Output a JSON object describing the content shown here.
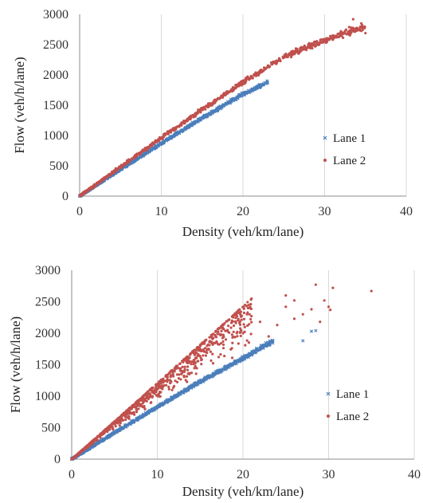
{
  "chart_data": [
    {
      "type": "scatter",
      "title": "",
      "xlabel": "Density (veh/km/lane)",
      "ylabel": "Flow (veh/h/lane)",
      "xlim": [
        0,
        40
      ],
      "ylim": [
        0,
        3000
      ],
      "xticks": [
        "0",
        "10",
        "20",
        "30",
        "40"
      ],
      "yticks": [
        "0",
        "500",
        "1000",
        "1500",
        "2000",
        "2500",
        "3000"
      ],
      "grid": "vertical",
      "legend_position": "right",
      "series": [
        {
          "name": "Lane 1",
          "marker": "x",
          "color": "#4a7ebb",
          "trend": [
            [
              0,
              0
            ],
            [
              5,
              440
            ],
            [
              10,
              870
            ],
            [
              15,
              1290
            ],
            [
              20,
              1680
            ],
            [
              23,
              1880
            ]
          ],
          "spread": 35,
          "count": 700,
          "points": [
            [
              0.3,
              25
            ],
            [
              1,
              85
            ],
            [
              2,
              170
            ],
            [
              3,
              260
            ],
            [
              4,
              350
            ],
            [
              5,
              440
            ],
            [
              6,
              525
            ],
            [
              7,
              610
            ],
            [
              8,
              700
            ],
            [
              9,
              785
            ],
            [
              10,
              870
            ],
            [
              11,
              955
            ],
            [
              12,
              1040
            ],
            [
              13,
              1125
            ],
            [
              14,
              1210
            ],
            [
              15,
              1290
            ],
            [
              16,
              1370
            ],
            [
              17,
              1450
            ],
            [
              18,
              1530
            ],
            [
              19,
              1605
            ],
            [
              20,
              1680
            ],
            [
              21,
              1750
            ],
            [
              22,
              1815
            ],
            [
              23,
              1880
            ]
          ]
        },
        {
          "name": "Lane 2",
          "marker": "dot",
          "color": "#c0504d",
          "trend": [
            [
              0,
              0
            ],
            [
              5,
              480
            ],
            [
              10,
              960
            ],
            [
              15,
              1430
            ],
            [
              20,
              1880
            ],
            [
              25,
              2300
            ],
            [
              30,
              2580
            ],
            [
              35,
              2800
            ]
          ],
          "spread": 70,
          "count": 800,
          "points": [
            [
              0.3,
              28
            ],
            [
              1,
              95
            ],
            [
              2,
              190
            ],
            [
              3,
              290
            ],
            [
              4,
              385
            ],
            [
              5,
              480
            ],
            [
              6,
              575
            ],
            [
              7,
              670
            ],
            [
              8,
              770
            ],
            [
              9,
              865
            ],
            [
              10,
              960
            ],
            [
              11,
              1055
            ],
            [
              12,
              1150
            ],
            [
              13,
              1245
            ],
            [
              14,
              1340
            ],
            [
              15,
              1430
            ],
            [
              16,
              1520
            ],
            [
              17,
              1610
            ],
            [
              18,
              1700
            ],
            [
              19,
              1790
            ],
            [
              20,
              1880
            ],
            [
              21,
              1965
            ],
            [
              22,
              2050
            ],
            [
              23,
              2130
            ],
            [
              24,
              2220
            ],
            [
              25,
              2300
            ],
            [
              26,
              2370
            ],
            [
              27,
              2440
            ],
            [
              28,
              2500
            ],
            [
              29,
              2550
            ],
            [
              30,
              2580
            ],
            [
              31,
              2650
            ],
            [
              32,
              2720
            ],
            [
              33,
              2790
            ],
            [
              33.5,
              2920
            ],
            [
              34.5,
              2850
            ],
            [
              35,
              2690
            ]
          ]
        }
      ]
    },
    {
      "type": "scatter",
      "title": "",
      "xlabel": "Density (veh/km/lane)",
      "ylabel": "Flow (veh/h/lane)",
      "xlim": [
        0,
        40
      ],
      "ylim": [
        0,
        3000
      ],
      "xticks": [
        "0",
        "10",
        "20",
        "30",
        "40"
      ],
      "yticks": [
        "0",
        "500",
        "1000",
        "1500",
        "2000",
        "2500",
        "3000"
      ],
      "grid": "vertical",
      "legend_position": "right",
      "series": [
        {
          "name": "Lane 1",
          "marker": "x",
          "color": "#4a7ebb",
          "trend": [
            [
              0,
              0
            ],
            [
              5,
              420
            ],
            [
              10,
              830
            ],
            [
              15,
              1230
            ],
            [
              20,
              1600
            ],
            [
              23.5,
              1880
            ]
          ],
          "spread": 40,
          "count": 800,
          "points": [
            [
              0.5,
              30
            ],
            [
              2,
              160
            ],
            [
              4,
              330
            ],
            [
              6,
              500
            ],
            [
              8,
              665
            ],
            [
              10,
              830
            ],
            [
              12,
              990
            ],
            [
              14,
              1150
            ],
            [
              16,
              1305
            ],
            [
              18,
              1455
            ],
            [
              20,
              1600
            ],
            [
              22,
              1760
            ],
            [
              23.5,
              1880
            ],
            [
              28.5,
              2040
            ],
            [
              28,
              2030
            ],
            [
              27,
              1880
            ]
          ]
        },
        {
          "name": "Lane 2",
          "marker": "dot",
          "color": "#c0504d",
          "trend": [
            [
              0,
              0
            ],
            [
              5,
              600
            ],
            [
              10,
              1210
            ],
            [
              15,
              1820
            ],
            [
              21,
              2550
            ]
          ],
          "envelope_low": [
            [
              0,
              0
            ],
            [
              5,
              470
            ],
            [
              10,
              890
            ],
            [
              15,
              1280
            ],
            [
              21,
              1700
            ]
          ],
          "count": 900,
          "points": [
            [
              21,
              2550
            ],
            [
              25,
              2600
            ],
            [
              26,
              2520
            ],
            [
              28.5,
              2770
            ],
            [
              30.5,
              2720
            ],
            [
              30,
              2420
            ],
            [
              35,
              2670
            ],
            [
              25,
              2420
            ],
            [
              27,
              2300
            ],
            [
              29,
              2180
            ],
            [
              24,
              2130
            ],
            [
              22,
              2180
            ],
            [
              26,
              2230
            ],
            [
              23,
              1950
            ],
            [
              20,
              2000
            ],
            [
              18,
              1900
            ],
            [
              16,
              1750
            ],
            [
              28,
              2380
            ],
            [
              29.5,
              2520
            ],
            [
              30.2,
              2370
            ]
          ]
        }
      ]
    }
  ]
}
